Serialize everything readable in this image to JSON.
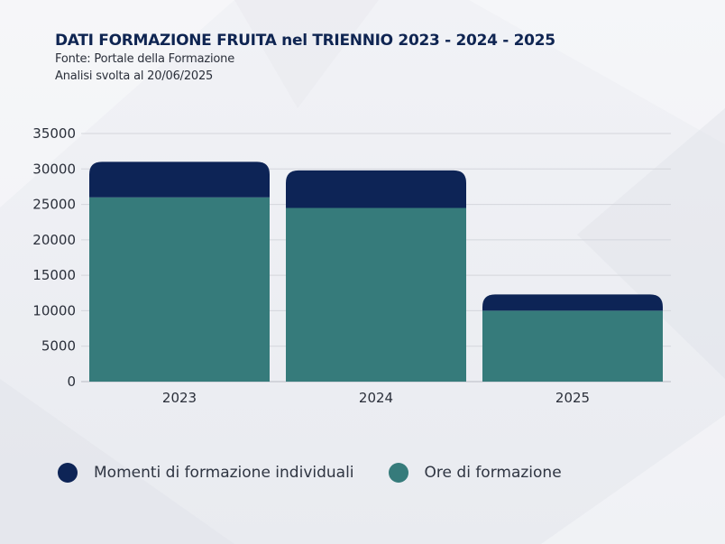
{
  "header": {
    "title": "DATI FORMAZIONE FRUITA nel TRIENNIO 2023 - 2024 - 2025",
    "source": "Fonte:  Portale della Formazione",
    "analysis_date": "Analisi svolta al 20/06/2025"
  },
  "colors": {
    "title": "#0f2552",
    "ore_di_formazione": "#367b7b",
    "momenti_individuali": "#0d2456",
    "gridline": "#d4d6dc"
  },
  "chart_data": {
    "type": "bar",
    "stacked": true,
    "categories": [
      "2023",
      "2024",
      "2025"
    ],
    "series": [
      {
        "name": "Ore di formazione",
        "values": [
          26000,
          24500,
          10000
        ],
        "color": "#367b7b"
      },
      {
        "name": "Momenti di formazione individuali",
        "values": [
          5000,
          5300,
          2300
        ],
        "color": "#0d2456"
      }
    ],
    "title": "DATI FORMAZIONE FRUITA nel TRIENNIO 2023 - 2024 - 2025",
    "xlabel": "",
    "ylabel": "",
    "ylim": [
      0,
      35000
    ],
    "yticks": [
      0,
      5000,
      10000,
      15000,
      20000,
      25000,
      30000,
      35000
    ],
    "grid": true,
    "legend": "bottom-left"
  },
  "legend": {
    "items": [
      {
        "label": "Momenti di formazione individuali",
        "color": "#0d2456"
      },
      {
        "label": "Ore di formazione",
        "color": "#367b7b"
      }
    ]
  }
}
